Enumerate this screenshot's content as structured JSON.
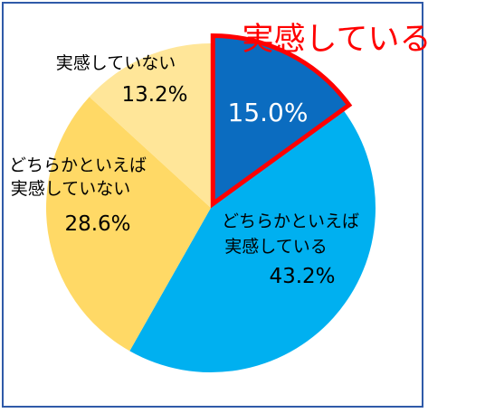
{
  "chart_data": {
    "type": "pie",
    "title": "",
    "callout": "実感している",
    "slices": [
      {
        "label": "実感している",
        "label_lines": [],
        "value": 15.0,
        "display": "15.0%",
        "color": "#0B6CC0",
        "highlighted": true
      },
      {
        "label": "どちらかといえば実感している",
        "label_lines": [
          "どちらかといえば",
          "実感している"
        ],
        "value": 43.2,
        "display": "43.2%",
        "color": "#00B0F0",
        "highlighted": false
      },
      {
        "label": "どちらかといえば実感していない",
        "label_lines": [
          "どちらかといえば",
          "実感していない"
        ],
        "value": 28.6,
        "display": "28.6%",
        "color": "#FFD966",
        "highlighted": false
      },
      {
        "label": "実感していない",
        "label_lines": [
          "実感していない"
        ],
        "value": 13.2,
        "display": "13.2%",
        "color": "#FFE699",
        "highlighted": false
      }
    ],
    "start_direction": "top",
    "order": "clockwise",
    "highlight_color": "#FF0000",
    "frame_color": "#2F5AA8"
  }
}
